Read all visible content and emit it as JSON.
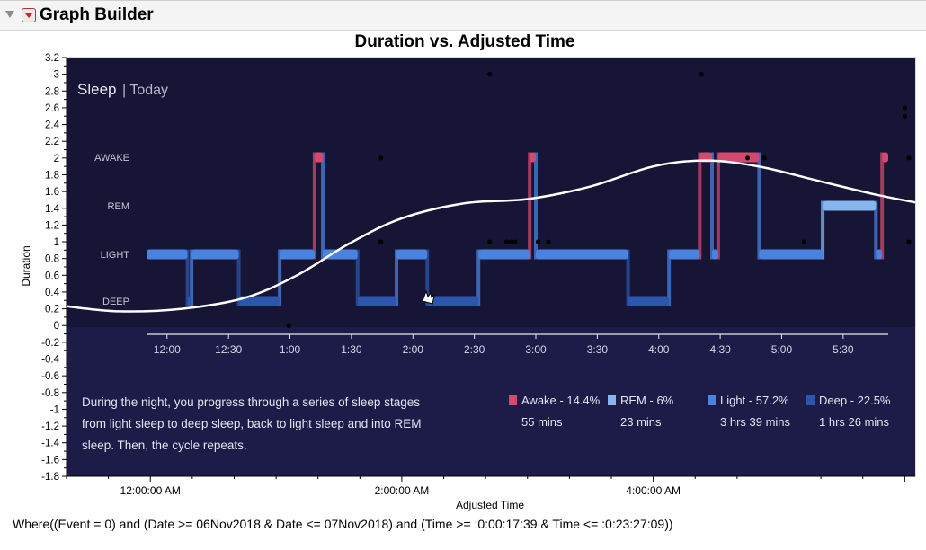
{
  "window": {
    "title": "Graph Builder"
  },
  "chart_data": {
    "type": "scatter",
    "title": "Duration vs. Adjusted Time",
    "xlabel": "Adjusted Time",
    "ylabel": "Duration",
    "xticks": [
      "12:00:00 AM",
      "2:00:00 AM",
      "4:00:00 AM"
    ],
    "xlim": [
      "11:20 PM",
      "6:05 AM"
    ],
    "ylim": [
      -1.8,
      3.2
    ],
    "yticks": [
      3.2,
      3,
      2.8,
      2.6,
      2.4,
      2.2,
      2,
      1.8,
      1.6,
      1.4,
      1.2,
      1,
      0.8,
      0.6,
      0.4,
      0.2,
      0,
      -0.2,
      -0.4,
      -0.6,
      -0.8,
      -1,
      -1.2,
      -1.4,
      -1.6,
      -1.8
    ],
    "points": [
      {
        "x": "1:06 AM",
        "y": 0
      },
      {
        "x": "1:50 AM",
        "y": 2
      },
      {
        "x": "1:50 AM",
        "y": 1
      },
      {
        "x": "2:42 AM",
        "y": 3
      },
      {
        "x": "2:42 AM",
        "y": 1
      },
      {
        "x": "2:50 AM",
        "y": 1
      },
      {
        "x": "2:52 AM",
        "y": 1
      },
      {
        "x": "2:54 AM",
        "y": 1
      },
      {
        "x": "3:05 AM",
        "y": 1
      },
      {
        "x": "3:10 AM",
        "y": 1
      },
      {
        "x": "4:23 AM",
        "y": 3
      },
      {
        "x": "4:45 AM",
        "y": 2
      },
      {
        "x": "4:53 AM",
        "y": 2
      },
      {
        "x": "5:12 AM",
        "y": 1
      },
      {
        "x": "6:00 AM",
        "y": 2.6
      },
      {
        "x": "6:00 AM",
        "y": 2.5
      },
      {
        "x": "6:02 AM",
        "y": 2
      },
      {
        "x": "6:02 AM",
        "y": 1
      }
    ],
    "smoother": [
      {
        "x": "11:20 PM",
        "y": 0.23
      },
      {
        "x": "11:45 PM",
        "y": 0.17
      },
      {
        "x": "12:15 AM",
        "y": 0.2
      },
      {
        "x": "12:45 AM",
        "y": 0.33
      },
      {
        "x": "1:10 AM",
        "y": 0.6
      },
      {
        "x": "1:35 AM",
        "y": 0.98
      },
      {
        "x": "2:00 AM",
        "y": 1.28
      },
      {
        "x": "2:30 AM",
        "y": 1.46
      },
      {
        "x": "3:00 AM",
        "y": 1.51
      },
      {
        "x": "3:30 AM",
        "y": 1.66
      },
      {
        "x": "4:00 AM",
        "y": 1.9
      },
      {
        "x": "4:25 AM",
        "y": 1.97
      },
      {
        "x": "4:50 AM",
        "y": 1.9
      },
      {
        "x": "5:20 AM",
        "y": 1.72
      },
      {
        "x": "5:45 AM",
        "y": 1.57
      },
      {
        "x": "6:05 AM",
        "y": 1.47
      }
    ],
    "background_image": {
      "header_bold": "Sleep",
      "header_light": "| Today",
      "stage_labels": [
        "AWAKE",
        "REM",
        "LIGHT",
        "DEEP"
      ],
      "time_ticks": [
        "12:00",
        "12:30",
        "1:00",
        "1:30",
        "2:00",
        "2:30",
        "3:00",
        "3:30",
        "4:00",
        "4:30",
        "5:00",
        "5:30"
      ],
      "description": "During the night, you progress through a series of sleep stages from light sleep to deep sleep, back to light sleep and into REM sleep. Then, the cycle repeats.",
      "legend": [
        {
          "name": "Awake - 14.4%",
          "duration": "55 mins",
          "color": "#d44a6e"
        },
        {
          "name": "REM - 6%",
          "duration": "23 mins",
          "color": "#86b6ee"
        },
        {
          "name": "Light - 57.2%",
          "duration": "3 hrs 39 mins",
          "color": "#4a82e0"
        },
        {
          "name": "Deep - 22.5%",
          "duration": "1 hrs 26 mins",
          "color": "#2c55ad"
        }
      ],
      "hypnogram": [
        {
          "stage": "LIGHT",
          "start": "11:50 PM",
          "end": "12:10 AM"
        },
        {
          "stage": "DEEP",
          "start": "12:10 AM",
          "end": "12:12 AM"
        },
        {
          "stage": "LIGHT",
          "start": "12:12 AM",
          "end": "12:35 AM"
        },
        {
          "stage": "DEEP",
          "start": "12:35 AM",
          "end": "12:55 AM"
        },
        {
          "stage": "LIGHT",
          "start": "12:55 AM",
          "end": "1:12 AM"
        },
        {
          "stage": "AWAKE",
          "start": "1:12 AM",
          "end": "1:16 AM"
        },
        {
          "stage": "LIGHT",
          "start": "1:16 AM",
          "end": "1:33 AM"
        },
        {
          "stage": "DEEP",
          "start": "1:33 AM",
          "end": "1:52 AM"
        },
        {
          "stage": "LIGHT",
          "start": "1:52 AM",
          "end": "2:07 AM"
        },
        {
          "stage": "DEEP",
          "start": "2:07 AM",
          "end": "2:32 AM"
        },
        {
          "stage": "LIGHT",
          "start": "2:32 AM",
          "end": "2:57 AM"
        },
        {
          "stage": "AWAKE",
          "start": "2:57 AM",
          "end": "3:00 AM"
        },
        {
          "stage": "LIGHT",
          "start": "3:00 AM",
          "end": "3:45 AM"
        },
        {
          "stage": "DEEP",
          "start": "3:45 AM",
          "end": "4:05 AM"
        },
        {
          "stage": "LIGHT",
          "start": "4:05 AM",
          "end": "4:20 AM"
        },
        {
          "stage": "AWAKE",
          "start": "4:20 AM",
          "end": "4:26 AM"
        },
        {
          "stage": "LIGHT",
          "start": "4:26 AM",
          "end": "4:29 AM"
        },
        {
          "stage": "AWAKE",
          "start": "4:29 AM",
          "end": "4:49 AM"
        },
        {
          "stage": "LIGHT",
          "start": "4:49 AM",
          "end": "5:20 AM"
        },
        {
          "stage": "REM",
          "start": "5:20 AM",
          "end": "5:46 AM"
        },
        {
          "stage": "LIGHT",
          "start": "5:46 AM",
          "end": "5:49 AM"
        },
        {
          "stage": "AWAKE",
          "start": "5:49 AM",
          "end": "5:52 AM"
        }
      ]
    }
  },
  "footer": {
    "where_clause": "Where((Event = 0) and (Date >= 06Nov2018 & Date <= 07Nov2018) and (Time >= :0:00:17:39 & Time <= :0:23:27:09))"
  }
}
